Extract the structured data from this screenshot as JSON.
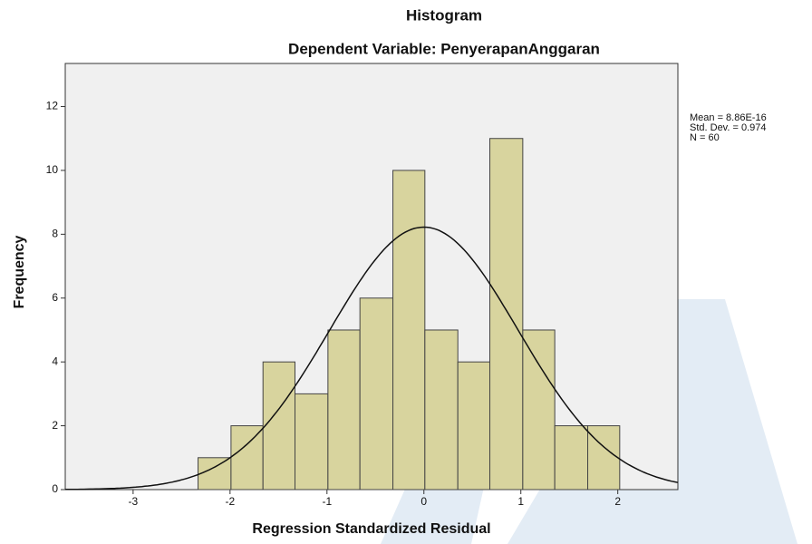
{
  "chart_data": {
    "type": "histogram",
    "title": "Histogram",
    "subtitle": "Dependent Variable: PenyerapanAnggaran",
    "x_label": "Regression Standardized Residual",
    "y_label": "Frequency",
    "bins": [
      -2.33,
      -1.99,
      -1.66,
      -1.33,
      -0.99,
      -0.66,
      -0.32,
      0.01,
      0.35,
      0.68,
      1.02,
      1.35,
      1.69,
      2.02
    ],
    "values": [
      1,
      2,
      4,
      3,
      5,
      6,
      10,
      5,
      4,
      11,
      5,
      2,
      2
    ],
    "color": "#d8d49e",
    "xlim": [
      -3.7,
      2.62
    ],
    "xticks": [
      -3,
      -2,
      -1,
      0,
      1,
      2
    ],
    "ylim": [
      0,
      13.35
    ],
    "yticks": [
      0,
      2,
      4,
      6,
      8,
      10,
      12
    ],
    "stats": {
      "mean": 8.86e-16,
      "std_dev": 0.974,
      "n": 60
    },
    "stats_text": [
      "Mean = 8.86E-16",
      "Std. Dev. = 0.974",
      "N = 60"
    ]
  }
}
